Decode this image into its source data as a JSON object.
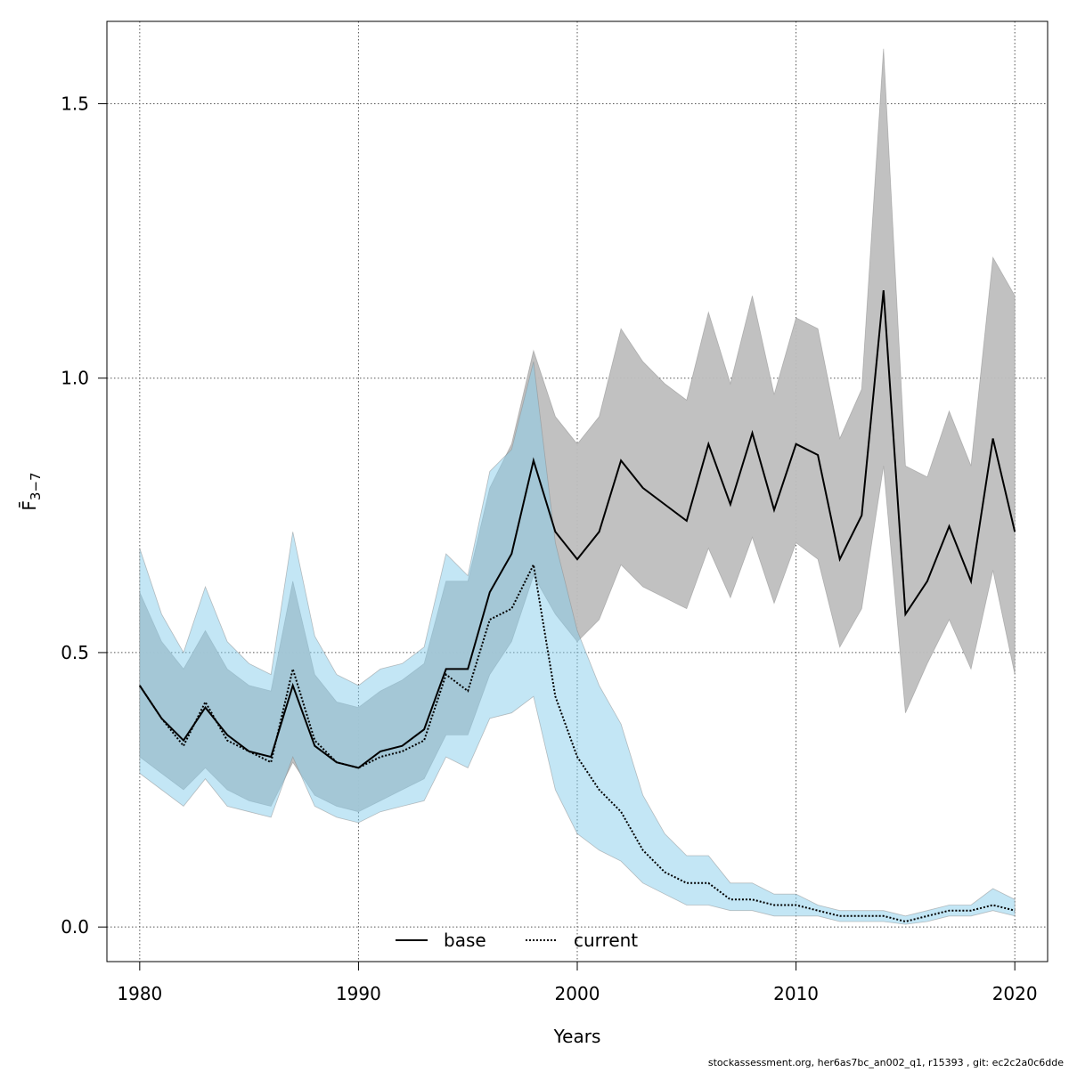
{
  "chart_data": {
    "type": "line",
    "title": "",
    "xlabel": "Years",
    "ylabel": "F̄",
    "ylabel_subscript": "3−7",
    "x_ticks": [
      "1980",
      "1990",
      "2000",
      "2010",
      "2020"
    ],
    "y_ticks": [
      "0.0",
      "0.5",
      "1.0",
      "1.5"
    ],
    "xlim": [
      1978.5,
      2021.5
    ],
    "ylim": [
      -0.063,
      1.65
    ],
    "grid": true,
    "legend_position": "bottom-center",
    "x": [
      1980,
      1981,
      1982,
      1983,
      1984,
      1985,
      1986,
      1987,
      1988,
      1989,
      1990,
      1991,
      1992,
      1993,
      1994,
      1995,
      1996,
      1997,
      1998,
      1999,
      2000,
      2001,
      2002,
      2003,
      2004,
      2005,
      2006,
      2007,
      2008,
      2009,
      2010,
      2011,
      2012,
      2013,
      2014,
      2015,
      2016,
      2017,
      2018,
      2019,
      2020
    ],
    "series": [
      {
        "name": "base",
        "line_color": "#000000",
        "band_color": "#bebebe",
        "line_style": "solid",
        "values": [
          0.44,
          0.38,
          0.34,
          0.4,
          0.35,
          0.32,
          0.31,
          0.44,
          0.33,
          0.3,
          0.29,
          0.32,
          0.33,
          0.36,
          0.47,
          0.47,
          0.61,
          0.68,
          0.85,
          0.72,
          0.67,
          0.72,
          0.85,
          0.8,
          0.77,
          0.74,
          0.88,
          0.77,
          0.9,
          0.76,
          0.88,
          0.86,
          0.67,
          0.75,
          1.16,
          0.57,
          0.63,
          0.73,
          0.63,
          0.89,
          0.72
        ],
        "lower": [
          0.31,
          0.28,
          0.25,
          0.29,
          0.25,
          0.23,
          0.22,
          0.3,
          0.24,
          0.22,
          0.21,
          0.23,
          0.25,
          0.27,
          0.35,
          0.35,
          0.46,
          0.52,
          0.64,
          0.57,
          0.52,
          0.56,
          0.66,
          0.62,
          0.6,
          0.58,
          0.69,
          0.6,
          0.71,
          0.59,
          0.7,
          0.67,
          0.51,
          0.58,
          0.84,
          0.39,
          0.48,
          0.56,
          0.47,
          0.65,
          0.46
        ],
        "upper": [
          0.61,
          0.52,
          0.47,
          0.54,
          0.47,
          0.44,
          0.43,
          0.63,
          0.46,
          0.41,
          0.4,
          0.43,
          0.45,
          0.48,
          0.63,
          0.63,
          0.8,
          0.88,
          1.05,
          0.93,
          0.88,
          0.93,
          1.09,
          1.03,
          0.99,
          0.96,
          1.12,
          0.99,
          1.15,
          0.97,
          1.11,
          1.09,
          0.89,
          0.98,
          1.6,
          0.84,
          0.82,
          0.94,
          0.84,
          1.22,
          1.15
        ]
      },
      {
        "name": "current",
        "line_color": "#000000",
        "band_color": "#87ceeb",
        "line_style": "dotted",
        "values": [
          0.44,
          0.38,
          0.33,
          0.41,
          0.34,
          0.32,
          0.3,
          0.47,
          0.34,
          0.3,
          0.29,
          0.31,
          0.32,
          0.34,
          0.46,
          0.43,
          0.56,
          0.58,
          0.66,
          0.42,
          0.31,
          0.25,
          0.21,
          0.14,
          0.1,
          0.08,
          0.08,
          0.05,
          0.05,
          0.04,
          0.04,
          0.03,
          0.02,
          0.02,
          0.02,
          0.01,
          0.02,
          0.03,
          0.03,
          0.04,
          0.03
        ],
        "lower": [
          0.28,
          0.25,
          0.22,
          0.27,
          0.22,
          0.21,
          0.2,
          0.31,
          0.22,
          0.2,
          0.19,
          0.21,
          0.22,
          0.23,
          0.31,
          0.29,
          0.38,
          0.39,
          0.42,
          0.25,
          0.17,
          0.14,
          0.12,
          0.08,
          0.06,
          0.04,
          0.04,
          0.03,
          0.03,
          0.02,
          0.02,
          0.02,
          0.01,
          0.01,
          0.01,
          0.005,
          0.01,
          0.02,
          0.02,
          0.03,
          0.02
        ],
        "upper": [
          0.69,
          0.57,
          0.5,
          0.62,
          0.52,
          0.48,
          0.46,
          0.72,
          0.53,
          0.46,
          0.44,
          0.47,
          0.48,
          0.51,
          0.68,
          0.64,
          0.83,
          0.87,
          1.03,
          0.7,
          0.54,
          0.44,
          0.37,
          0.24,
          0.17,
          0.13,
          0.13,
          0.08,
          0.08,
          0.06,
          0.06,
          0.04,
          0.03,
          0.03,
          0.03,
          0.02,
          0.03,
          0.04,
          0.04,
          0.07,
          0.05
        ]
      }
    ]
  },
  "footer": {
    "note": "stockassessment.org, her6as7bc_an002_q1, r15393 , git: ec2c2a0c6dde"
  }
}
